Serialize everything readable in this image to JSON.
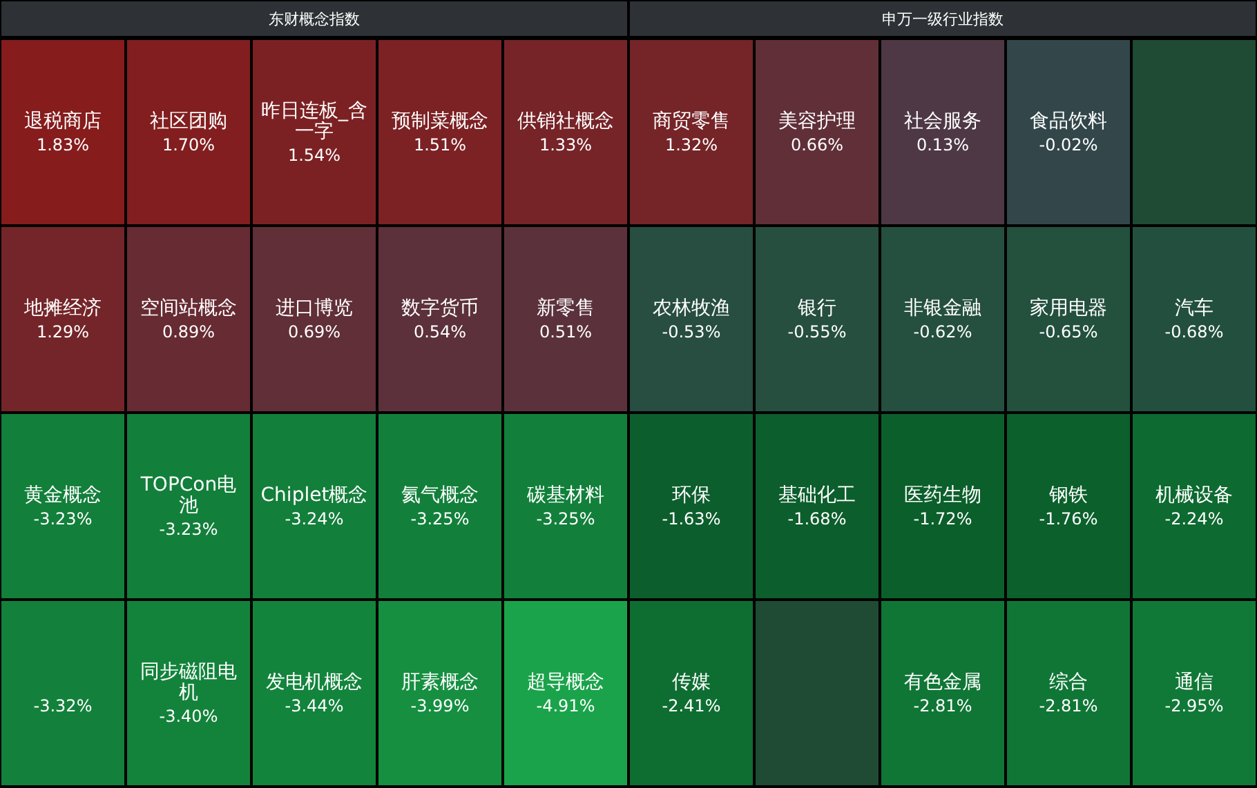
{
  "chart_data": [
    {
      "type": "other",
      "title": "东财概念指数",
      "categories": [
        "退税商店",
        "社区团购",
        "昨日连板_含一字",
        "预制菜概念",
        "供销社概念",
        "地摊经济",
        "空间站概念",
        "进口博览",
        "数字货币",
        "新零售",
        "黄金概念",
        "TOPCon电池",
        "Chiplet概念",
        "氦气概念",
        "碳基材料",
        null,
        "同步磁阻电机",
        "发电机概念",
        "肝素概念",
        "超导概念"
      ],
      "values": [
        1.83,
        1.7,
        1.54,
        1.51,
        1.33,
        1.29,
        0.89,
        0.69,
        0.54,
        0.51,
        -3.23,
        -3.23,
        -3.24,
        -3.25,
        -3.25,
        null,
        -3.4,
        -3.44,
        -3.99,
        -4.91
      ],
      "value_labels": [
        "1.83%",
        "1.70%",
        "1.54%",
        "1.51%",
        "1.33%",
        "1.29%",
        "0.89%",
        "0.69%",
        "0.54%",
        "0.51%",
        "-3.23%",
        "-3.23%",
        "-3.24%",
        "-3.25%",
        "-3.25%",
        "-3.32%",
        "-3.40%",
        "-3.44%",
        "-3.99%",
        "-4.91%"
      ]
    },
    {
      "type": "other",
      "title": "申万一级行业指数",
      "categories": [
        "商贸零售",
        "美容护理",
        "社会服务",
        "食品饮料",
        null,
        "农林牧渔",
        "银行",
        "非银金融",
        "家用电器",
        "汽车",
        "环保",
        "基础化工",
        "医药生物",
        "钢铁",
        "机械设备",
        "传媒",
        null,
        "有色金属",
        "综合",
        "通信"
      ],
      "values": [
        1.32,
        0.66,
        0.13,
        -0.02,
        null,
        -0.53,
        -0.55,
        -0.62,
        -0.65,
        -0.68,
        -1.63,
        -1.68,
        -1.72,
        -1.76,
        -2.24,
        -2.41,
        null,
        -2.81,
        -2.81,
        -2.95
      ],
      "value_labels": [
        "1.32%",
        "0.66%",
        "0.13%",
        "-0.02%",
        null,
        "-0.53%",
        "-0.55%",
        "-0.62%",
        "-0.65%",
        "-0.68%",
        "-1.63%",
        "-1.68%",
        "-1.72%",
        "-1.76%",
        "-2.24%",
        "-2.41%",
        null,
        "-2.81%",
        "-2.81%",
        "-2.95%"
      ]
    }
  ]
}
